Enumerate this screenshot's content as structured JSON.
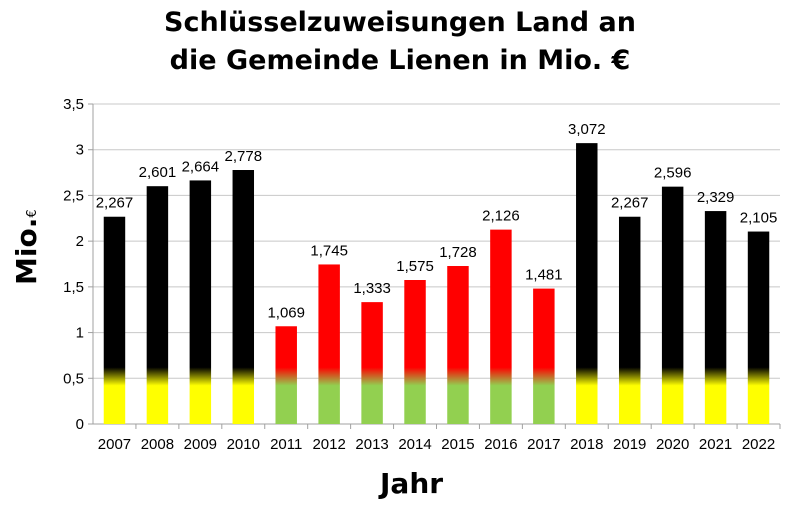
{
  "chart_data": {
    "type": "bar",
    "title_lines": [
      "Schlüsselzuweisungen  Land an",
      "die Gemeinde Lienen in Mio. €"
    ],
    "xlabel": "Jahr",
    "ylabel": "Mio.",
    "ylabel_sub": "€",
    "ylim": [
      0,
      3.5
    ],
    "yticks": [
      "0",
      "0,5",
      "1",
      "1,5",
      "2",
      "2,5",
      "3",
      "3,5"
    ],
    "grid": true,
    "categories": [
      "2007",
      "2008",
      "2009",
      "2010",
      "2011",
      "2012",
      "2013",
      "2014",
      "2015",
      "2016",
      "2017",
      "2018",
      "2019",
      "2020",
      "2021",
      "2022"
    ],
    "values": [
      2.267,
      2.601,
      2.664,
      2.778,
      1.069,
      1.745,
      1.333,
      1.575,
      1.728,
      2.126,
      1.481,
      3.072,
      2.267,
      2.596,
      2.329,
      2.105
    ],
    "value_labels": [
      "2,267",
      "2,601",
      "2,664",
      "2,778",
      "1,069",
      "1,745",
      "1,333",
      "1,575",
      "1,728",
      "2,126",
      "1,481",
      "3,072",
      "2,267",
      "2,596",
      "2,329",
      "2,105"
    ],
    "color_schemes": [
      "black-yellow",
      "black-yellow",
      "black-yellow",
      "black-yellow",
      "red-green",
      "red-green",
      "red-green",
      "red-green",
      "red-green",
      "red-green",
      "red-green",
      "black-yellow",
      "black-yellow",
      "black-yellow",
      "black-yellow",
      "black-yellow"
    ]
  },
  "colors": {
    "black": "#000000",
    "yellow": "#ffff00",
    "red": "#ff0000",
    "green": "#92d050",
    "grid": "#c8c8c8",
    "axis": "#a0a0a0"
  }
}
